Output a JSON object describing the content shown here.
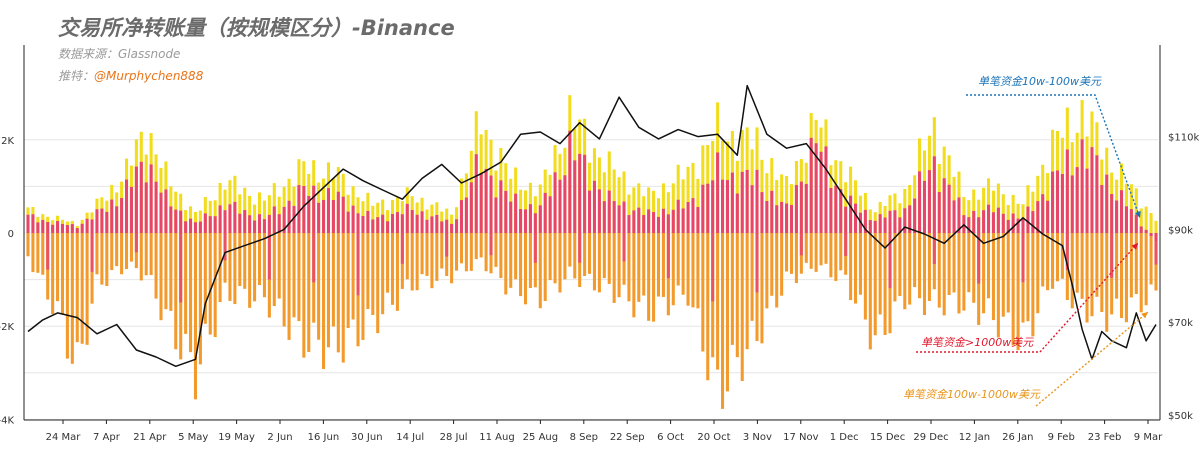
{
  "header": {
    "title": "交易所净转账量（按规模区分）-Binance",
    "source_label": "数据来源：Glassnode",
    "twitter_label": "推特：",
    "twitter_handle": "@Murphychen888"
  },
  "chart_data": {
    "type": "bar",
    "title": "交易所净转账量（按规模区分）-Binance",
    "x_tick_labels": [
      "24 Mar",
      "7 Apr",
      "21 Apr",
      "5 May",
      "19 May",
      "2 Jun",
      "16 Jun",
      "30 Jun",
      "14 Jul",
      "28 Jul",
      "11 Aug",
      "25 Aug",
      "8 Sep",
      "22 Sep",
      "6 Oct",
      "20 Oct",
      "3 Nov",
      "17 Nov",
      "1 Dec",
      "15 Dec",
      "29 Dec",
      "12 Jan",
      "26 Jan",
      "9 Feb",
      "23 Feb",
      "9 Mar"
    ],
    "y_left": {
      "ticks": [
        2000,
        0,
        -2000,
        -4000
      ],
      "tick_labels": [
        "2K",
        "0",
        "-2K",
        "-4K"
      ],
      "range": [
        -4000,
        3200
      ]
    },
    "y_right": {
      "ticks": [
        110000,
        90000,
        70000,
        50000
      ],
      "tick_labels": [
        "$110k",
        "$90k",
        "$70k",
        "$50k"
      ],
      "range": [
        50000,
        120000
      ]
    },
    "grid": true,
    "legend": "annotations",
    "colors": {
      "series_10w_100w": "#f2dc1e",
      "series_gt_1000w": "#e8456b",
      "series_100w_1000w": "#f39a2c",
      "price_line": "#111111",
      "annotation_10w_100w": "#1b74b8",
      "annotation_gt_1000w": "#e0182d",
      "annotation_100w_1000w": "#e8951a",
      "grid": "#e6e6e6"
    },
    "series": [
      {
        "name": "单笔资金10w-100w美元",
        "role": "bars_back"
      },
      {
        "name": "单笔资金>1000w美元",
        "role": "bars_front"
      },
      {
        "name": "单笔资金100w-1000w美元",
        "role": "bars_mid"
      },
      {
        "name": "BTC price",
        "role": "line"
      }
    ],
    "annotations": [
      {
        "text": "单笔资金10w-100w美元",
        "color_key": "annotation_10w_100w"
      },
      {
        "text": "单笔资金>1000w美元",
        "color_key": "annotation_gt_1000w"
      },
      {
        "text": "单笔资金100w-1000w美元",
        "color_key": "annotation_100w_1000w"
      }
    ],
    "bars_start": "2024-03-11",
    "bars_end": "2025-03-12",
    "bar_count": 230,
    "bar_segments": [
      {
        "x": 0,
        "yellow": 500,
        "red": 350,
        "orange": -500
      },
      {
        "x": 6,
        "yellow": 300,
        "red": 200,
        "orange": -1700
      },
      {
        "x": 10,
        "yellow": 200,
        "red": 150,
        "orange": -2900
      },
      {
        "x": 14,
        "yellow": 600,
        "red": 400,
        "orange": -1100
      },
      {
        "x": 20,
        "yellow": 1300,
        "red": 900,
        "orange": -700
      },
      {
        "x": 24,
        "yellow": 2300,
        "red": 1600,
        "orange": -900
      },
      {
        "x": 28,
        "yellow": 1200,
        "red": 700,
        "orange": -1800
      },
      {
        "x": 34,
        "yellow": 400,
        "red": 200,
        "orange": -3000
      },
      {
        "x": 40,
        "yellow": 1100,
        "red": 600,
        "orange": -1300
      },
      {
        "x": 48,
        "yellow": 700,
        "red": 300,
        "orange": -1400
      },
      {
        "x": 56,
        "yellow": 1400,
        "red": 900,
        "orange": -2300
      },
      {
        "x": 62,
        "yellow": 1300,
        "red": 800,
        "orange": -2500
      },
      {
        "x": 70,
        "yellow": 600,
        "red": 300,
        "orange": -1900
      },
      {
        "x": 78,
        "yellow": 800,
        "red": 500,
        "orange": -1100
      },
      {
        "x": 86,
        "yellow": 400,
        "red": 200,
        "orange": -900
      },
      {
        "x": 92,
        "yellow": 2400,
        "red": 1500,
        "orange": -600
      },
      {
        "x": 98,
        "yellow": 1200,
        "red": 700,
        "orange": -1200
      },
      {
        "x": 104,
        "yellow": 900,
        "red": 500,
        "orange": -1400
      },
      {
        "x": 110,
        "yellow": 2500,
        "red": 1800,
        "orange": -900
      },
      {
        "x": 118,
        "yellow": 1400,
        "red": 700,
        "orange": -1200
      },
      {
        "x": 126,
        "yellow": 800,
        "red": 400,
        "orange": -1700
      },
      {
        "x": 134,
        "yellow": 1300,
        "red": 600,
        "orange": -1300
      },
      {
        "x": 140,
        "yellow": 2200,
        "red": 1300,
        "orange": -3400
      },
      {
        "x": 148,
        "yellow": 1900,
        "red": 1100,
        "orange": -2200
      },
      {
        "x": 154,
        "yellow": 1000,
        "red": 500,
        "orange": -1000
      },
      {
        "x": 160,
        "yellow": 2400,
        "red": 1900,
        "orange": -700
      },
      {
        "x": 166,
        "yellow": 1300,
        "red": 700,
        "orange": -1000
      },
      {
        "x": 172,
        "yellow": 500,
        "red": 300,
        "orange": -2300
      },
      {
        "x": 178,
        "yellow": 900,
        "red": 500,
        "orange": -1400
      },
      {
        "x": 184,
        "yellow": 2300,
        "red": 1500,
        "orange": -1500
      },
      {
        "x": 190,
        "yellow": 800,
        "red": 400,
        "orange": -1500
      },
      {
        "x": 196,
        "yellow": 1000,
        "red": 500,
        "orange": -1800
      },
      {
        "x": 202,
        "yellow": 600,
        "red": 300,
        "orange": -2300
      },
      {
        "x": 208,
        "yellow": 1900,
        "red": 1100,
        "orange": -1000
      },
      {
        "x": 214,
        "yellow": 2600,
        "red": 1800,
        "orange": -1600
      },
      {
        "x": 220,
        "yellow": 1500,
        "red": 1000,
        "orange": -1800
      },
      {
        "x": 229,
        "yellow": 300,
        "red": -200,
        "orange": -1300
      }
    ],
    "price_points": [
      {
        "x": 0,
        "y": 68000
      },
      {
        "x": 3,
        "y": 70500
      },
      {
        "x": 6,
        "y": 72000
      },
      {
        "x": 10,
        "y": 71000
      },
      {
        "x": 14,
        "y": 67500
      },
      {
        "x": 18,
        "y": 69500
      },
      {
        "x": 22,
        "y": 64000
      },
      {
        "x": 26,
        "y": 62500
      },
      {
        "x": 30,
        "y": 60500
      },
      {
        "x": 34,
        "y": 62000
      },
      {
        "x": 36,
        "y": 74000
      },
      {
        "x": 40,
        "y": 85000
      },
      {
        "x": 44,
        "y": 86500
      },
      {
        "x": 48,
        "y": 88000
      },
      {
        "x": 52,
        "y": 90000
      },
      {
        "x": 56,
        "y": 95000
      },
      {
        "x": 60,
        "y": 99000
      },
      {
        "x": 64,
        "y": 103000
      },
      {
        "x": 68,
        "y": 100500
      },
      {
        "x": 72,
        "y": 98500
      },
      {
        "x": 76,
        "y": 96500
      },
      {
        "x": 80,
        "y": 101000
      },
      {
        "x": 84,
        "y": 104000
      },
      {
        "x": 88,
        "y": 100000
      },
      {
        "x": 92,
        "y": 102000
      },
      {
        "x": 96,
        "y": 104500
      },
      {
        "x": 100,
        "y": 110500
      },
      {
        "x": 104,
        "y": 111000
      },
      {
        "x": 108,
        "y": 108500
      },
      {
        "x": 112,
        "y": 113000
      },
      {
        "x": 116,
        "y": 109500
      },
      {
        "x": 120,
        "y": 118500
      },
      {
        "x": 124,
        "y": 112000
      },
      {
        "x": 128,
        "y": 109500
      },
      {
        "x": 132,
        "y": 111500
      },
      {
        "x": 136,
        "y": 110000
      },
      {
        "x": 140,
        "y": 110500
      },
      {
        "x": 144,
        "y": 106000
      },
      {
        "x": 146,
        "y": 121000
      },
      {
        "x": 150,
        "y": 110500
      },
      {
        "x": 154,
        "y": 107500
      },
      {
        "x": 158,
        "y": 108500
      },
      {
        "x": 162,
        "y": 103000
      },
      {
        "x": 166,
        "y": 96500
      },
      {
        "x": 170,
        "y": 90000
      },
      {
        "x": 174,
        "y": 86000
      },
      {
        "x": 178,
        "y": 90500
      },
      {
        "x": 182,
        "y": 89000
      },
      {
        "x": 186,
        "y": 87000
      },
      {
        "x": 190,
        "y": 91000
      },
      {
        "x": 194,
        "y": 87000
      },
      {
        "x": 198,
        "y": 88500
      },
      {
        "x": 202,
        "y": 92500
      },
      {
        "x": 206,
        "y": 89000
      },
      {
        "x": 210,
        "y": 86500
      },
      {
        "x": 212,
        "y": 78000
      },
      {
        "x": 214,
        "y": 68500
      },
      {
        "x": 216,
        "y": 62000
      },
      {
        "x": 218,
        "y": 68000
      },
      {
        "x": 220,
        "y": 66000
      },
      {
        "x": 223,
        "y": 64500
      },
      {
        "x": 225,
        "y": 72000
      },
      {
        "x": 227,
        "y": 66000
      },
      {
        "x": 229,
        "y": 69500
      }
    ]
  }
}
